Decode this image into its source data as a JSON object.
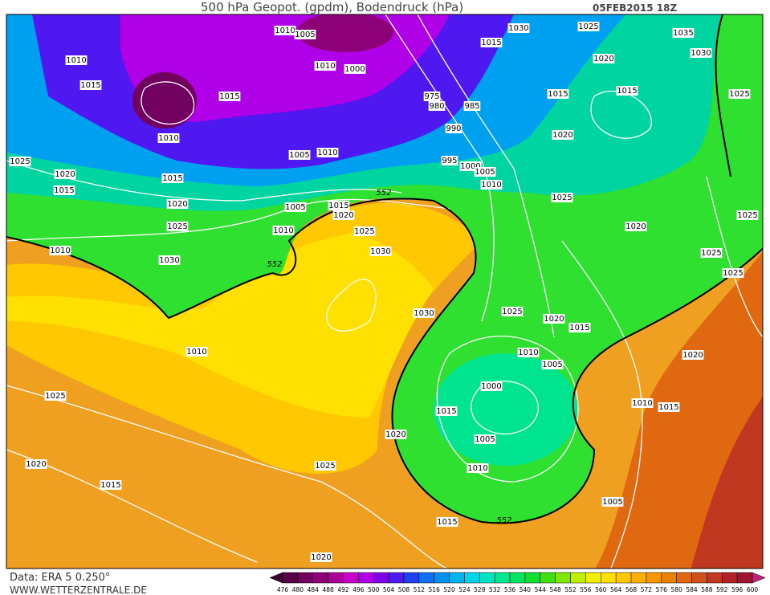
{
  "header": {
    "title": "500 hPa Geopot. (gpdm), Bodendruck (hPa)",
    "date": "05FEB2015 18Z"
  },
  "footer": {
    "source": "Data: ERA 5 0.250°",
    "site": "WWW.WETTERZENTRALE.DE"
  },
  "colorbar": {
    "labels": [
      "476",
      "480",
      "484",
      "488",
      "492",
      "496",
      "500",
      "504",
      "508",
      "512",
      "516",
      "520",
      "524",
      "528",
      "532",
      "536",
      "540",
      "544",
      "548",
      "552",
      "556",
      "560",
      "564",
      "568",
      "572",
      "576",
      "580",
      "584",
      "588",
      "592",
      "596",
      "600"
    ],
    "colors": [
      "#3a0030",
      "#560048",
      "#72005e",
      "#8e0078",
      "#aa0098",
      "#c800c8",
      "#b000e8",
      "#8000e8",
      "#5018f0",
      "#2040f0",
      "#1070f0",
      "#0090f0",
      "#00b4f0",
      "#00d4e8",
      "#00e4c0",
      "#00e890",
      "#00e460",
      "#10e030",
      "#40e010",
      "#80e800",
      "#c0f000",
      "#f0f000",
      "#ffe000",
      "#ffc800",
      "#ffb000",
      "#f89800",
      "#ec8000",
      "#e06810",
      "#d05018",
      "#c03820",
      "#b02428",
      "#a01430",
      "#c0207a"
    ]
  },
  "isobar_labels": [
    "1010",
    "1005",
    "1015",
    "1030",
    "1025",
    "1035",
    "1030",
    "1010",
    "1010",
    "1000",
    "1020",
    "1015",
    "1015",
    "975",
    "980",
    "985",
    "1015",
    "1015",
    "1025",
    "1010",
    "990",
    "1020",
    "1005",
    "1010",
    "995",
    "1000",
    "1005",
    "1025",
    "1020",
    "1015",
    "1010",
    "1015",
    "1020",
    "1025",
    "1005",
    "1015",
    "1020",
    "1025",
    "1025",
    "1020",
    "1010",
    "1025",
    "1010",
    "1030",
    "1025",
    "1030",
    "1025",
    "1030",
    "1025",
    "1020",
    "1015",
    "1010",
    "1010",
    "1020",
    "1005",
    "1000",
    "1025",
    "1010",
    "1015",
    "1015",
    "1020",
    "1005",
    "1020",
    "1010",
    "1025",
    "1015",
    "1005",
    "1015",
    "1020"
  ],
  "contour_labels": [
    "552",
    "552",
    "552"
  ]
}
